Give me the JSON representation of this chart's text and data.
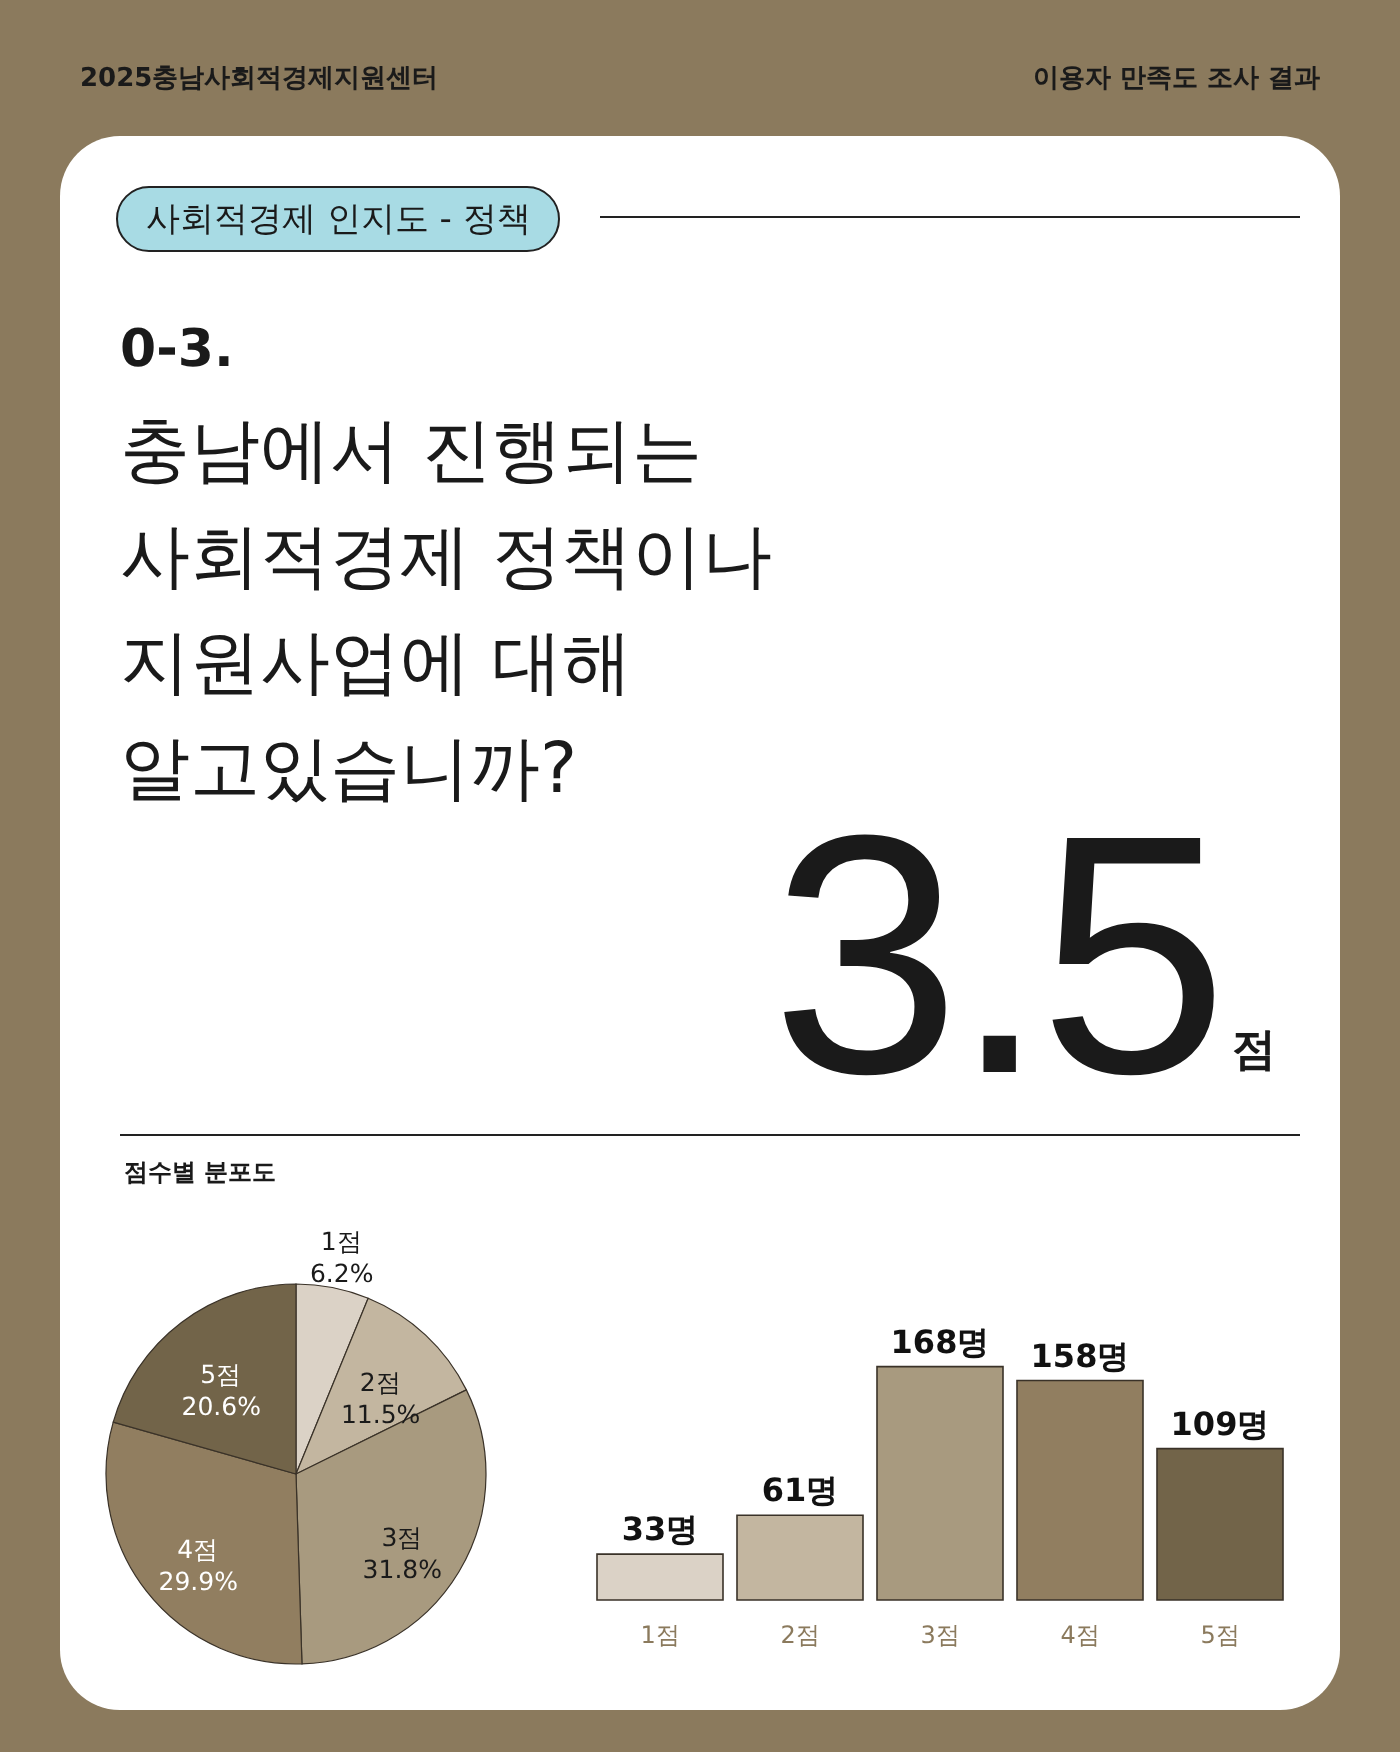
{
  "chart_data": [
    {
      "type": "other",
      "title": "충남에서 진행되는\n사회적경제 정책이나\n지원사업에 대해\n알고있습니까?",
      "annotations": [
        "2025충남사회적경제지원센터",
        "이용자 만족도 조사 결과",
        "사회적경제 인지도 - 정책",
        "0-3.",
        "3.5",
        "점",
        "점수별 분포도"
      ]
    },
    {
      "type": "pie",
      "categories": [
        "1점",
        "2점",
        "3점",
        "4점",
        "5점"
      ],
      "values": [
        6.2,
        11.5,
        31.8,
        29.9,
        20.6
      ],
      "colors": [
        "#dbd2c6",
        "#c3b6a0",
        "#a89a7f",
        "#917e60",
        "#726449"
      ],
      "value_labels": [
        "6.2%",
        "11.5%",
        "31.8%",
        "29.9%",
        "20.6%"
      ]
    },
    {
      "type": "bar",
      "categories": [
        "1점",
        "2점",
        "3점",
        "4점",
        "5점"
      ],
      "values": [
        33,
        61,
        168,
        158,
        109
      ],
      "colors": [
        "#dbd2c6",
        "#c3b6a0",
        "#a89a7f",
        "#917e60",
        "#726449"
      ],
      "value_labels": [
        "33명",
        "61명",
        "168명",
        "158명",
        "109명"
      ]
    }
  ]
}
